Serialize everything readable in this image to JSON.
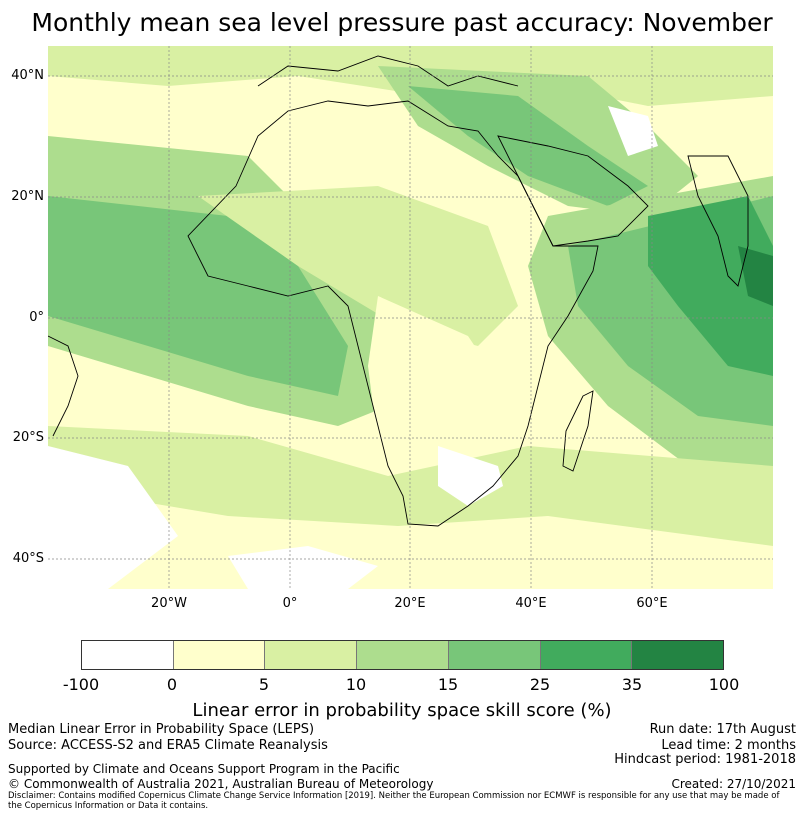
{
  "title": "Monthly mean sea level pressure past accuracy: November",
  "map": {
    "lat_labels": [
      "40°N",
      "20°N",
      "0°",
      "20°S",
      "40°S"
    ],
    "lon_labels": [
      "20°W",
      "0°",
      "20°E",
      "40°E",
      "60°E"
    ],
    "land_outline_color": "#000000",
    "grid_color": "#888888"
  },
  "colorbar": {
    "ticks": [
      "-100",
      "0",
      "5",
      "10",
      "15",
      "25",
      "35",
      "100"
    ],
    "colors": [
      "#ffffff",
      "#ffffcc",
      "#d9f0a3",
      "#addd8e",
      "#78c679",
      "#41ab5d",
      "#238443"
    ],
    "label": "Linear error in probability space skill score (%)"
  },
  "info_left": {
    "line1": "Median Linear Error in Probability Space (LEPS)",
    "line2": "Source: ACCESS-S2 and ERA5 Climate Reanalysis",
    "line3": "Supported by Climate and Oceans Support Program in the Pacific",
    "line4": "© Commonwealth of Australia 2021, Australian Bureau of Meteorology"
  },
  "info_right": {
    "run_date": "Run date: 17th August",
    "lead_time": "Lead time: 2 months",
    "hindcast": "Hindcast period: 1981-2018",
    "created": "Created: 27/10/2021"
  },
  "disclaimer": "Disclaimer: Contains modified Copernicus Climate Change Service Information [2019]. Neither the European Commission nor ECMWF is responsible for any use that may be made of the Copernicus Information or Data it contains."
}
